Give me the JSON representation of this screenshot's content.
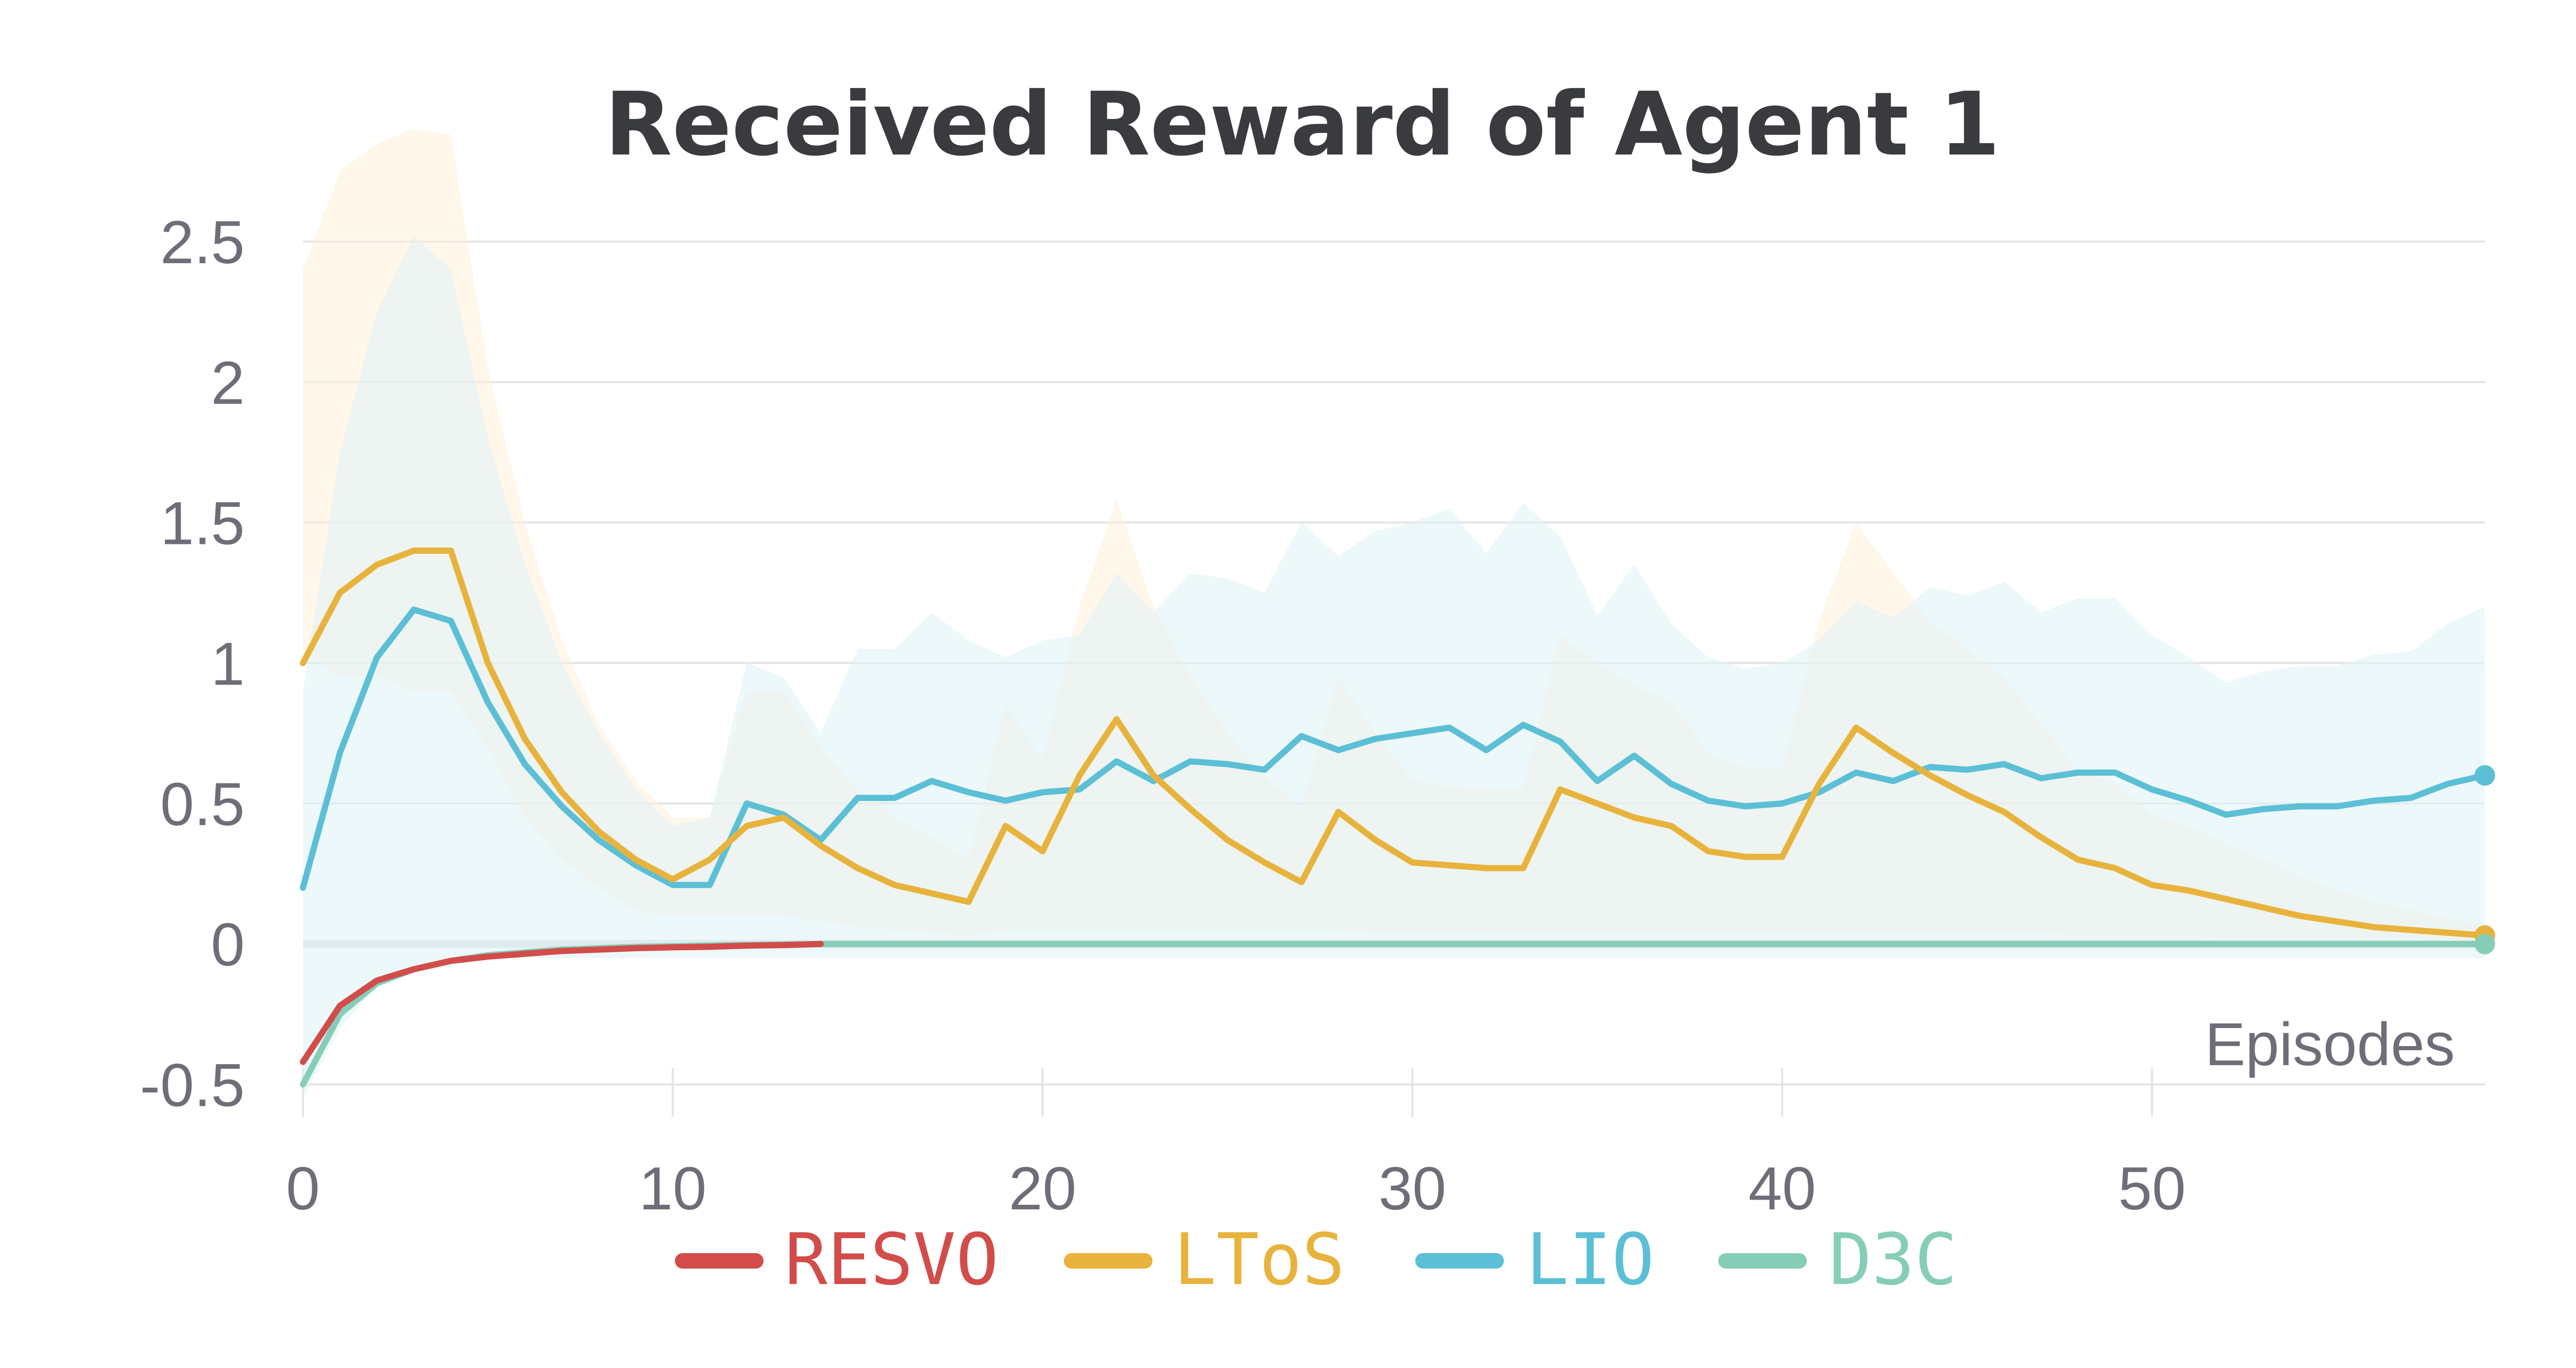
{
  "chart_data": {
    "type": "line",
    "title": "Received Reward of Agent 1",
    "xlabel": "Episodes",
    "ylabel": "",
    "xlim": [
      0,
      59
    ],
    "ylim": [
      -0.6,
      2.7
    ],
    "x_ticks": [
      0,
      10,
      20,
      30,
      40,
      50
    ],
    "x_tick_labels": [
      "0",
      "10",
      "20",
      "30",
      "40",
      "50"
    ],
    "y_ticks": [
      -0.5,
      0,
      0.5,
      1,
      1.5,
      2,
      2.5
    ],
    "y_tick_labels": [
      "-0.5",
      "0",
      "0.5",
      "1",
      "1.5",
      "2",
      "2.5"
    ],
    "grid": true,
    "legend_position": "bottom-center",
    "series": [
      {
        "name": "RESVO",
        "color": "#d24c4a",
        "x": [
          0,
          1,
          2,
          3,
          4,
          5,
          6,
          7,
          8,
          9,
          10,
          11,
          12,
          13,
          14
        ],
        "values": [
          -0.42,
          -0.22,
          -0.13,
          -0.09,
          -0.06,
          -0.045,
          -0.035,
          -0.025,
          -0.02,
          -0.015,
          -0.012,
          -0.01,
          -0.006,
          -0.004,
          0
        ]
      },
      {
        "name": "LToS",
        "color": "#e8b33c",
        "band_color": "#fdf1d8",
        "x": [
          0,
          1,
          2,
          3,
          4,
          5,
          6,
          7,
          8,
          9,
          10,
          11,
          12,
          13,
          14,
          15,
          16,
          17,
          18,
          19,
          20,
          21,
          22,
          23,
          24,
          25,
          26,
          27,
          28,
          29,
          30,
          31,
          32,
          33,
          34,
          35,
          36,
          37,
          38,
          39,
          40,
          41,
          42,
          43,
          44,
          45,
          46,
          47,
          48,
          49,
          50,
          51,
          52,
          53,
          54,
          55,
          56,
          57,
          58,
          59
        ],
        "values": [
          1.0,
          1.25,
          1.35,
          1.4,
          1.4,
          1.0,
          0.73,
          0.54,
          0.4,
          0.3,
          0.23,
          0.3,
          0.42,
          0.45,
          0.35,
          0.27,
          0.21,
          0.18,
          0.15,
          0.42,
          0.33,
          0.6,
          0.8,
          0.6,
          0.48,
          0.37,
          0.29,
          0.22,
          0.47,
          0.37,
          0.29,
          0.28,
          0.27,
          0.27,
          0.55,
          0.5,
          0.45,
          0.42,
          0.33,
          0.31,
          0.31,
          0.57,
          0.77,
          0.68,
          0.6,
          0.53,
          0.47,
          0.38,
          0.3,
          0.27,
          0.21,
          0.19,
          0.16,
          0.13,
          0.1,
          0.08,
          0.06,
          0.05,
          0.04,
          0.03
        ],
        "lower": [
          1.05,
          0.95,
          0.95,
          0.9,
          0.9,
          0.7,
          0.45,
          0.3,
          0.2,
          0.12,
          0.1,
          0.1,
          0.1,
          0.1,
          0.08,
          0.06,
          0.05,
          0.04,
          0.03,
          0.05,
          0.05,
          0.05,
          0.05,
          0.05,
          0.05,
          0.05,
          0.05,
          0.05,
          0.05,
          0.04,
          0.04,
          0.04,
          0.04,
          0.04,
          0.04,
          0.04,
          0.04,
          0.04,
          0.04,
          0.04,
          0.04,
          0.04,
          0.04,
          0.04,
          0.04,
          0.04,
          0.04,
          0.04,
          0.03,
          0.03,
          0.03,
          0.03,
          0.02,
          0.02,
          0.02,
          0.02,
          0.02,
          0.02,
          0.01,
          0.01
        ],
        "upper": [
          2.4,
          2.75,
          2.85,
          2.9,
          2.88,
          2.05,
          1.5,
          1.08,
          0.78,
          0.58,
          0.45,
          0.45,
          0.9,
          0.9,
          0.7,
          0.55,
          0.45,
          0.38,
          0.3,
          0.85,
          0.65,
          1.2,
          1.58,
          1.2,
          0.95,
          0.75,
          0.6,
          0.48,
          0.95,
          0.75,
          0.58,
          0.56,
          0.55,
          0.55,
          1.1,
          1.0,
          0.92,
          0.86,
          0.68,
          0.63,
          0.62,
          1.15,
          1.5,
          1.32,
          1.15,
          1.05,
          0.95,
          0.78,
          0.62,
          0.57,
          0.46,
          0.42,
          0.36,
          0.3,
          0.24,
          0.19,
          0.15,
          0.12,
          0.09,
          0.07
        ]
      },
      {
        "name": "LIO",
        "color": "#5bbfd6",
        "band_color": "#dff2f6",
        "x": [
          0,
          1,
          2,
          3,
          4,
          5,
          6,
          7,
          8,
          9,
          10,
          11,
          12,
          13,
          14,
          15,
          16,
          17,
          18,
          19,
          20,
          21,
          22,
          23,
          24,
          25,
          26,
          27,
          28,
          29,
          30,
          31,
          32,
          33,
          34,
          35,
          36,
          37,
          38,
          39,
          40,
          41,
          42,
          43,
          44,
          45,
          46,
          47,
          48,
          49,
          50,
          51,
          52,
          53,
          54,
          55,
          56,
          57,
          58,
          59
        ],
        "values": [
          0.2,
          0.68,
          1.02,
          1.19,
          1.15,
          0.86,
          0.64,
          0.49,
          0.37,
          0.28,
          0.21,
          0.21,
          0.5,
          0.46,
          0.37,
          0.52,
          0.52,
          0.58,
          0.54,
          0.51,
          0.54,
          0.55,
          0.65,
          0.58,
          0.65,
          0.64,
          0.62,
          0.74,
          0.69,
          0.73,
          0.75,
          0.77,
          0.69,
          0.78,
          0.72,
          0.58,
          0.67,
          0.57,
          0.51,
          0.49,
          0.5,
          0.54,
          0.61,
          0.58,
          0.63,
          0.62,
          0.64,
          0.59,
          0.61,
          0.61,
          0.55,
          0.51,
          0.46,
          0.48,
          0.49,
          0.49,
          0.51,
          0.52,
          0.57,
          0.6
        ],
        "lower": [
          -0.55,
          -0.3,
          -0.15,
          -0.1,
          -0.08,
          -0.05,
          -0.05,
          -0.05,
          -0.05,
          -0.05,
          -0.05,
          -0.05,
          -0.05,
          -0.05,
          -0.05,
          -0.05,
          -0.05,
          -0.05,
          -0.05,
          -0.05,
          -0.05,
          -0.05,
          -0.05,
          -0.05,
          -0.05,
          -0.05,
          -0.05,
          -0.05,
          -0.05,
          -0.05,
          -0.05,
          -0.05,
          -0.05,
          -0.05,
          -0.05,
          -0.05,
          -0.05,
          -0.05,
          -0.05,
          -0.05,
          -0.05,
          -0.05,
          -0.05,
          -0.05,
          -0.05,
          -0.05,
          -0.05,
          -0.05,
          -0.05,
          -0.05,
          -0.05,
          -0.05,
          -0.05,
          -0.05,
          -0.05,
          -0.05,
          -0.05,
          -0.05,
          -0.05,
          -0.05
        ],
        "upper": [
          0.9,
          1.75,
          2.25,
          2.52,
          2.4,
          1.8,
          1.35,
          1.0,
          0.75,
          0.55,
          0.42,
          0.45,
          1.0,
          0.95,
          0.75,
          1.05,
          1.05,
          1.18,
          1.08,
          1.02,
          1.08,
          1.1,
          1.32,
          1.18,
          1.32,
          1.3,
          1.25,
          1.5,
          1.38,
          1.47,
          1.5,
          1.55,
          1.39,
          1.57,
          1.45,
          1.17,
          1.35,
          1.14,
          1.02,
          0.98,
          1.0,
          1.08,
          1.22,
          1.16,
          1.27,
          1.24,
          1.29,
          1.18,
          1.23,
          1.23,
          1.1,
          1.02,
          0.93,
          0.97,
          0.99,
          0.99,
          1.03,
          1.04,
          1.14,
          1.2
        ]
      },
      {
        "name": "D3C",
        "color": "#86cdb8",
        "x": [
          0,
          1,
          2,
          3,
          4,
          5,
          6,
          7,
          8,
          9,
          10,
          11,
          12,
          13,
          14,
          15,
          16,
          17,
          18,
          19,
          20,
          21,
          22,
          23,
          24,
          25,
          26,
          27,
          28,
          29,
          30,
          31,
          32,
          33,
          34,
          35,
          36,
          37,
          38,
          39,
          40,
          41,
          42,
          43,
          44,
          45,
          46,
          47,
          48,
          49,
          50,
          51,
          52,
          53,
          54,
          55,
          56,
          57,
          58,
          59
        ],
        "values": [
          -0.5,
          -0.25,
          -0.14,
          -0.09,
          -0.06,
          -0.04,
          -0.03,
          -0.02,
          -0.015,
          -0.01,
          -0.008,
          -0.005,
          -0.003,
          -0.002,
          0,
          0,
          0,
          0,
          0,
          0,
          0,
          0,
          0,
          0,
          0,
          0,
          0,
          0,
          0,
          0,
          0,
          0,
          0,
          0,
          0,
          0,
          0,
          0,
          0,
          0,
          0,
          0,
          0,
          0,
          0,
          0,
          0,
          0,
          0,
          0,
          0,
          0,
          0,
          0,
          0,
          0,
          0,
          0,
          0,
          0
        ]
      }
    ]
  },
  "colors": {
    "background": "#ffffff",
    "grid": "#e4e4e4",
    "zero_line": "#e2e2e6",
    "title": "#3a3b3f",
    "tick_label": "#6e6e78"
  }
}
